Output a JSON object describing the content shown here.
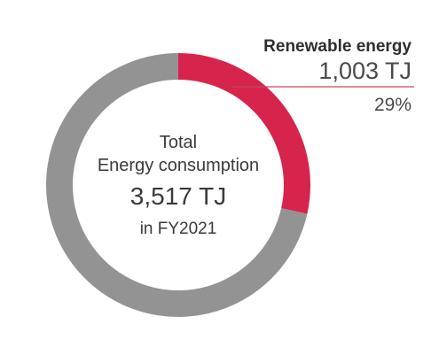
{
  "chart_data": {
    "type": "pie",
    "variant": "donut",
    "center": {
      "line1": "Total",
      "line2": "Energy consumption",
      "value": "3,517 TJ",
      "period": "in FY2021"
    },
    "total": 3517,
    "unit": "TJ",
    "slices": [
      {
        "label": "Renewable energy",
        "value": 1003,
        "value_label": "1,003 TJ",
        "percent_label": "29%",
        "color": "#d6244d"
      },
      {
        "value": 2514,
        "color": "#939393"
      }
    ],
    "callout_line_color": "#c2485f"
  }
}
